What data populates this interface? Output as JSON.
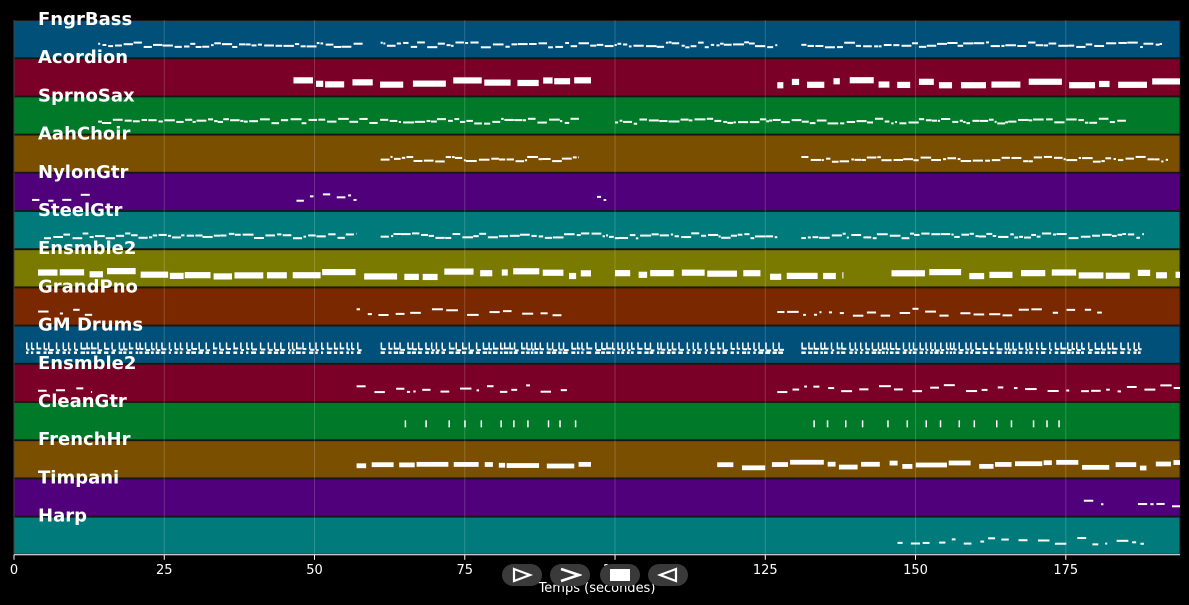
{
  "xaxis": {
    "label": "Temps (secondes)",
    "min": 0,
    "max": 194,
    "ticks": [
      "0",
      "25",
      "50",
      "75",
      "100",
      "125",
      "150",
      "175"
    ],
    "tick_values": [
      0,
      25,
      50,
      75,
      100,
      125,
      150,
      175
    ]
  },
  "grid": true,
  "controls": {
    "play": "play-icon",
    "forward": "forward-icon",
    "stop": "stop-icon",
    "rewind": "rewind-icon"
  },
  "tracks": [
    {
      "name": "FngrBass",
      "color": "#00507a",
      "style": "dense",
      "segments": [
        [
          14,
          58,
          2
        ],
        [
          61,
          127,
          2
        ],
        [
          131,
          191,
          2
        ]
      ]
    },
    {
      "name": "Acordion",
      "color": "#7a0028",
      "style": "blocks",
      "segments": [
        [
          46.5,
          96,
          3
        ],
        [
          127,
          194,
          3
        ]
      ]
    },
    {
      "name": "SprnoSax",
      "color": "#007a28",
      "style": "dense",
      "segments": [
        [
          14,
          94,
          2
        ],
        [
          100,
          185,
          2
        ]
      ]
    },
    {
      "name": "AahChoir",
      "color": "#7a5000",
      "style": "dense",
      "segments": [
        [
          61,
          94,
          2
        ],
        [
          131,
          192,
          2
        ]
      ]
    },
    {
      "name": "NylonGtr",
      "color": "#50007a",
      "style": "sparse",
      "segments": [
        [
          3,
          13,
          1
        ],
        [
          47,
          57,
          1
        ],
        [
          97,
          100,
          1
        ]
      ]
    },
    {
      "name": "SteelGtr",
      "color": "#007a7a",
      "style": "dense",
      "segments": [
        [
          5,
          57,
          2
        ],
        [
          61,
          127,
          2
        ],
        [
          131,
          188,
          2
        ]
      ]
    },
    {
      "name": "Ensmble2",
      "color": "#7a7a00",
      "style": "blocks",
      "segments": [
        [
          4,
          96,
          3
        ],
        [
          100,
          138,
          3
        ],
        [
          146,
          194,
          3
        ]
      ]
    },
    {
      "name": "GrandPno",
      "color": "#7a2800",
      "style": "sparse",
      "segments": [
        [
          4,
          13,
          1
        ],
        [
          57,
          92,
          1
        ],
        [
          127,
          181,
          1
        ]
      ]
    },
    {
      "name": "GM Drums",
      "color": "#00507a",
      "style": "drums",
      "segments": [
        [
          2,
          58,
          3
        ],
        [
          61,
          128,
          3
        ],
        [
          131,
          188,
          3
        ]
      ]
    },
    {
      "name": "Ensmble2",
      "color": "#7a0028",
      "style": "sparse",
      "segments": [
        [
          4,
          13,
          1
        ],
        [
          57,
          92,
          1
        ],
        [
          127,
          194,
          1
        ]
      ]
    },
    {
      "name": "CleanGtr",
      "color": "#007a28",
      "style": "ticks",
      "segments": [
        [
          65,
          96,
          1
        ],
        [
          133,
          177,
          1
        ]
      ]
    },
    {
      "name": "FrenchHr",
      "color": "#7a5000",
      "style": "blocks",
      "segments": [
        [
          57,
          96,
          2
        ],
        [
          117,
          194,
          2
        ]
      ]
    },
    {
      "name": "Timpani",
      "color": "#50007a",
      "style": "sparse",
      "segments": [
        [
          178,
          182,
          1
        ],
        [
          187,
          194,
          2
        ]
      ]
    },
    {
      "name": "Harp",
      "color": "#007a7a",
      "style": "sparse",
      "segments": [
        [
          147,
          188,
          2
        ]
      ]
    }
  ]
}
